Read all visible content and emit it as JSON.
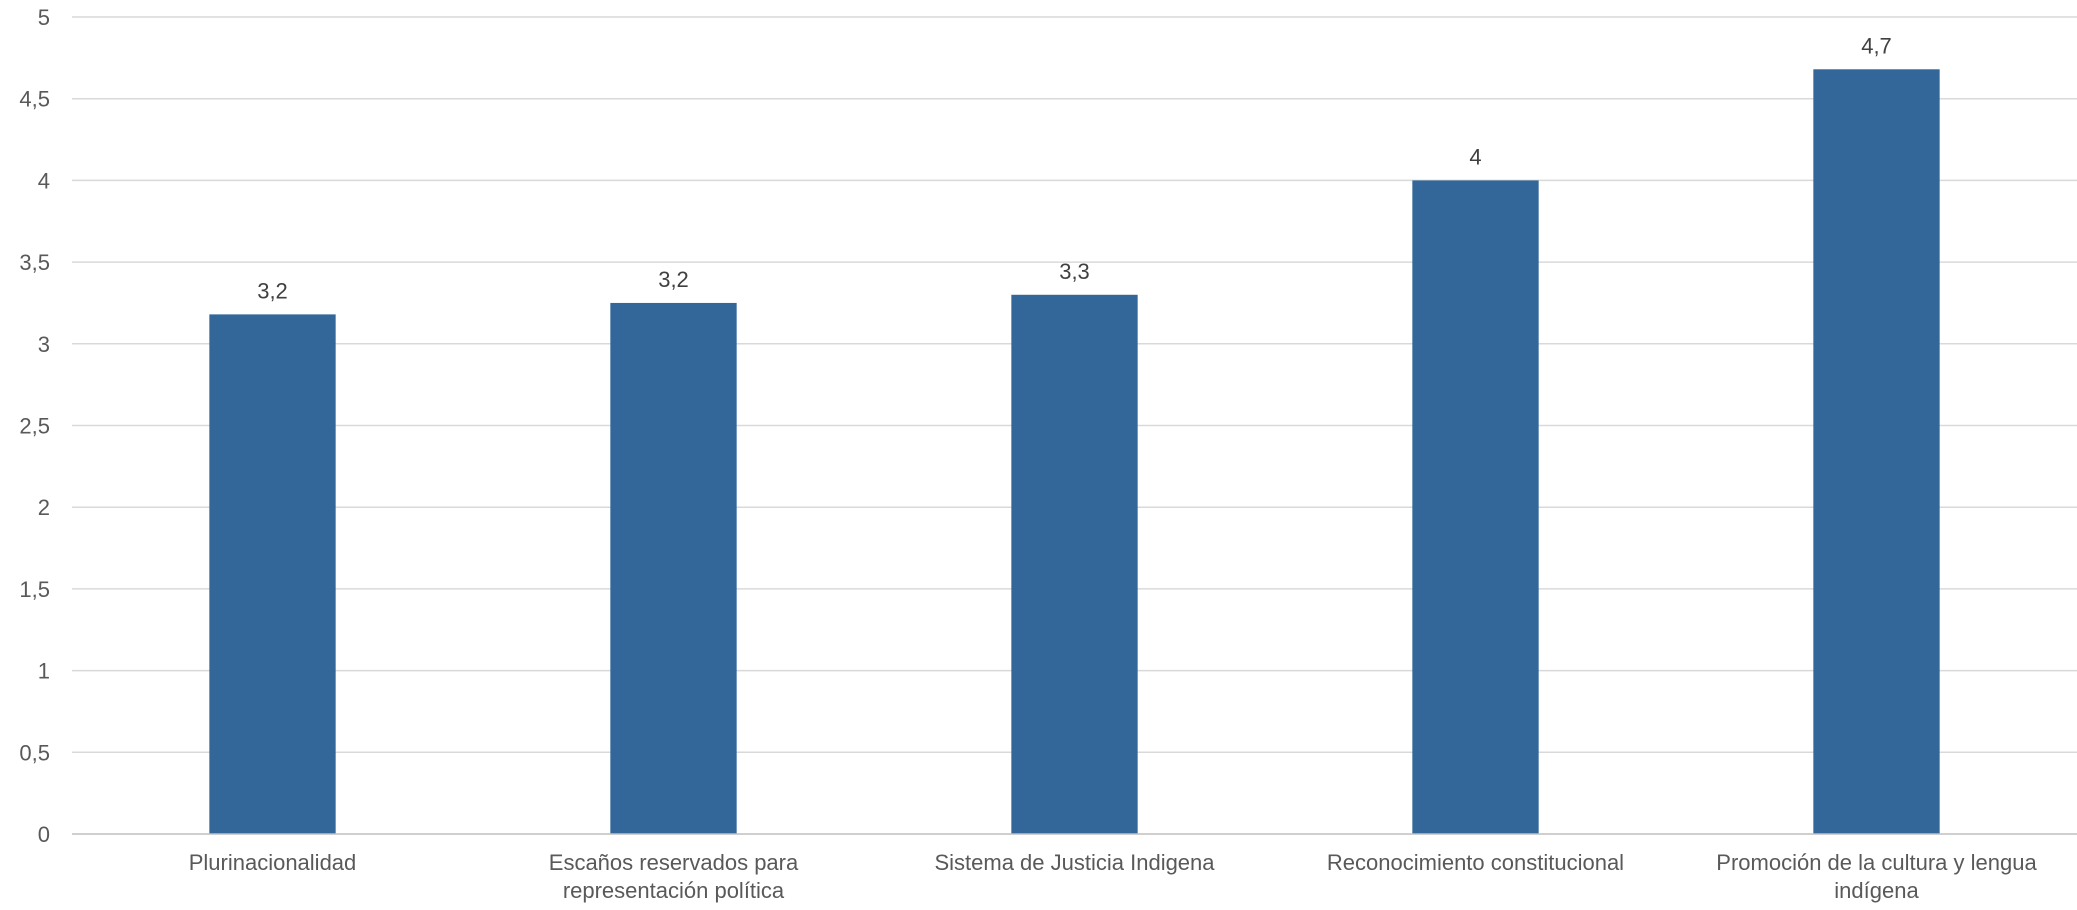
{
  "chart_data": {
    "type": "bar",
    "title": "",
    "xlabel": "",
    "ylabel": "",
    "categories": [
      [
        "Plurinacionalidad"
      ],
      [
        "Escaños reservados para",
        "representación política"
      ],
      [
        "Sistema de Justicia Indigena"
      ],
      [
        "Reconocimiento constitucional"
      ],
      [
        "Promoción de la cultura y lengua",
        "indígena"
      ]
    ],
    "values": [
      3.18,
      3.25,
      3.3,
      4.0,
      4.68
    ],
    "data_labels": [
      "3,2",
      "3,2",
      "3,3",
      "4",
      "4,7"
    ],
    "ylim": [
      0,
      5
    ],
    "yticks": [
      0,
      0.5,
      1,
      1.5,
      2,
      2.5,
      3,
      3.5,
      4,
      4.5,
      5
    ],
    "ytick_labels": [
      "0",
      "0,5",
      "1",
      "1,5",
      "2",
      "2,5",
      "3",
      "3,5",
      "4",
      "4,5",
      "5"
    ],
    "grid": true,
    "legend": "none",
    "colors": {
      "bar": "#336699",
      "grid": "#d9d9d9",
      "axis": "#bfbfbf",
      "text": "#595959",
      "data_label": "#404040"
    }
  }
}
